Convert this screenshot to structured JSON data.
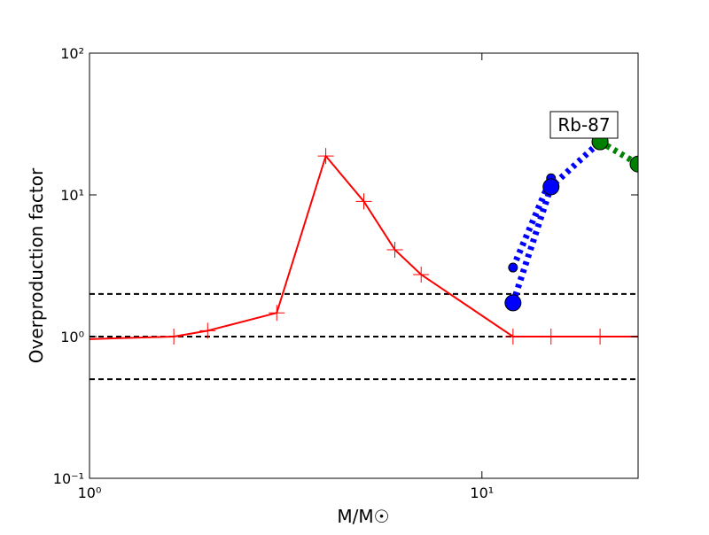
{
  "chart_data": {
    "type": "line",
    "xlabel": "M/M☉",
    "ylabel": "Overproduction factor",
    "xscale": "log",
    "yscale": "log",
    "xlim": [
      1,
      25
    ],
    "ylim": [
      0.1,
      100
    ],
    "xticks": [
      {
        "value": 1,
        "label": "10⁰"
      },
      {
        "value": 10,
        "label": "10¹"
      }
    ],
    "yticks": [
      {
        "value": 0.1,
        "label": "10⁻¹"
      },
      {
        "value": 1,
        "label": "10⁰"
      },
      {
        "value": 10,
        "label": "10¹"
      },
      {
        "value": 100,
        "label": "10²"
      }
    ],
    "hlines": [
      0.5,
      1,
      2
    ],
    "annotation": "Rb-87",
    "series": [
      {
        "color": "#ff0000",
        "linestyle": "solid",
        "marker": "plus",
        "marker_size": 9,
        "x": [
          1,
          1.64,
          2,
          3,
          4,
          5,
          6,
          7,
          12,
          15,
          20,
          25
        ],
        "values": [
          0.96,
          1.0,
          1.1,
          1.47,
          18.8,
          9.0,
          4.1,
          2.74,
          1.0,
          1.0,
          1.0,
          1.0
        ]
      },
      {
        "color": "#0000ff",
        "linestyle": "dotted",
        "marker": "circle",
        "marker_size": 5,
        "x": [
          12,
          15
        ],
        "values": [
          3.07,
          13.1
        ]
      },
      {
        "color": "#0000ff",
        "linestyle": "dotted",
        "marker": "circle",
        "marker_size": 9,
        "x": [
          12,
          15,
          20
        ],
        "values": [
          1.73,
          11.4,
          23.7
        ]
      },
      {
        "color": "#008000",
        "linestyle": "dotted",
        "marker": "circle",
        "marker_size": 9,
        "x": [
          20,
          25
        ],
        "values": [
          23.7,
          16.5
        ]
      }
    ]
  }
}
